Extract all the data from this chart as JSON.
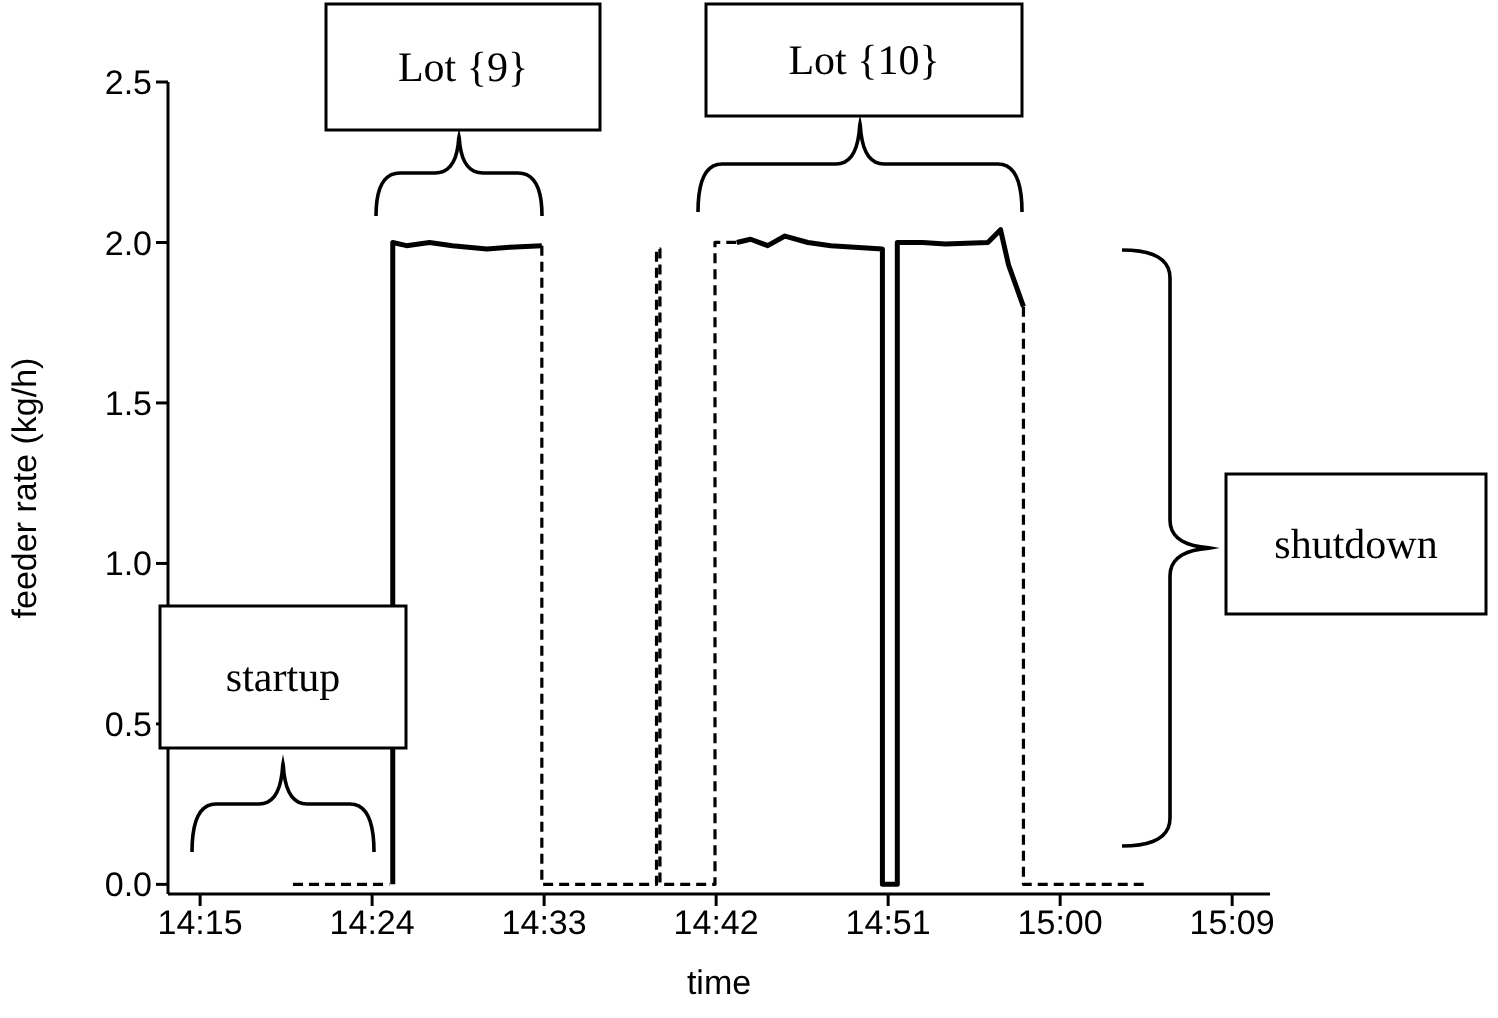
{
  "chart_data": {
    "type": "line",
    "xlabel": "time",
    "ylabel": "feeder rate (kg/h)",
    "xlim": [
      14.222,
      15.183
    ],
    "ylim": [
      -0.03,
      2.5
    ],
    "xticks": [
      {
        "value": 14.25,
        "label": "14:15"
      },
      {
        "value": 14.4,
        "label": "14:24"
      },
      {
        "value": 14.55,
        "label": "14:33"
      },
      {
        "value": 14.7,
        "label": "14:42"
      },
      {
        "value": 14.85,
        "label": "14:51"
      },
      {
        "value": 15.0,
        "label": "15:00"
      },
      {
        "value": 15.15,
        "label": "15:09"
      }
    ],
    "yticks": [
      {
        "value": 0,
        "label": "0.0"
      },
      {
        "value": 0.5,
        "label": "0.5"
      },
      {
        "value": 1,
        "label": "1.0"
      },
      {
        "value": 1.5,
        "label": "1.5"
      },
      {
        "value": 2,
        "label": "2.0"
      },
      {
        "value": 2.5,
        "label": "2.5"
      }
    ],
    "series": [
      {
        "color": "#000000",
        "line_style": "dashed",
        "x": [
          14.331,
          14.415
        ],
        "values": [
          0,
          0
        ]
      },
      {
        "color": "#000000",
        "line_style": "solid",
        "x": [
          14.418,
          14.418,
          14.43,
          14.45,
          14.47,
          14.5,
          14.52,
          14.548
        ],
        "values": [
          0,
          2.0,
          1.99,
          2.0,
          1.99,
          1.98,
          1.985,
          1.99
        ]
      },
      {
        "color": "#000000",
        "line_style": "dashed",
        "x": [
          14.548,
          14.548,
          14.648,
          14.648,
          14.651,
          14.651,
          14.699,
          14.699,
          14.718
        ],
        "values": [
          1.99,
          0,
          0,
          1.98,
          1.98,
          0,
          0,
          2.0,
          2.0
        ]
      },
      {
        "color": "#000000",
        "line_style": "solid",
        "x": [
          14.718,
          14.73,
          14.745,
          14.76,
          14.78,
          14.8,
          14.845,
          14.845,
          14.858,
          14.858,
          14.88,
          14.9,
          14.937,
          14.948,
          14.955,
          14.968
        ],
        "values": [
          2.0,
          2.01,
          1.99,
          2.02,
          2.0,
          1.99,
          1.98,
          0,
          0,
          2.0,
          2.0,
          1.995,
          2.0,
          2.04,
          1.93,
          1.8
        ]
      },
      {
        "color": "#000000",
        "line_style": "dashed",
        "x": [
          14.968,
          14.968,
          15.078
        ],
        "values": [
          1.8,
          0,
          0
        ]
      }
    ],
    "annotations": [
      "startup",
      "Lot {9}",
      "Lot {10}",
      "shutdown"
    ]
  }
}
